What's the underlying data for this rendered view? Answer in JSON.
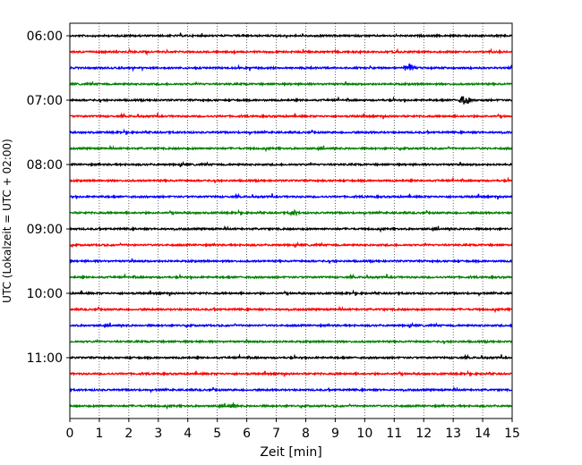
{
  "chart_data": {
    "type": "line",
    "title": "",
    "xlabel": "Zeit  [min]",
    "ylabel": "UTC (Lokalzeit = UTC + 02:00)",
    "xlim": [
      0,
      15
    ],
    "x_ticks": [
      "0",
      "1",
      "2",
      "3",
      "4",
      "5",
      "6",
      "7",
      "8",
      "9",
      "10",
      "11",
      "12",
      "13",
      "14",
      "15"
    ],
    "y_ticks": [
      "06:00",
      "07:00",
      "08:00",
      "09:00",
      "10:00",
      "11:00"
    ],
    "trace_interval_minutes": 15,
    "trace_start": "06:00",
    "trace_count": 24,
    "trace_colors": [
      "#000000",
      "#ff0000",
      "#0000ff",
      "#008000"
    ],
    "grid": "vertical dotted",
    "legend": "none",
    "events": [
      {
        "trace": 2,
        "minute": 11.5,
        "amplitude": 5
      },
      {
        "trace": 4,
        "minute": 13.4,
        "amplitude": 6
      },
      {
        "trace": 11,
        "minute": 7.6,
        "amplitude": 3
      },
      {
        "trace": 23,
        "minute": 5.5,
        "amplitude": 3
      }
    ]
  }
}
